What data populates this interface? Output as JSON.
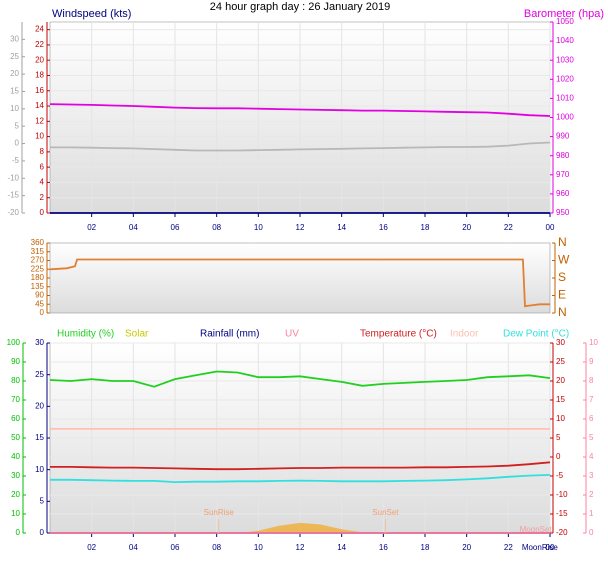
{
  "chart_data": [
    {
      "type": "line",
      "title": "24 hour graph day : 26 January 2019",
      "x": [
        0,
        1,
        2,
        3,
        4,
        5,
        6,
        7,
        8,
        9,
        10,
        11,
        12,
        13,
        14,
        15,
        16,
        17,
        18,
        19,
        20,
        21,
        22,
        23,
        24
      ],
      "xlim": [
        0,
        24
      ],
      "xticks": [
        {
          "value": 2,
          "label": "02"
        },
        {
          "value": 4,
          "label": "04"
        },
        {
          "value": 6,
          "label": "06"
        },
        {
          "value": 8,
          "label": "08"
        },
        10,
        12,
        14,
        16,
        18,
        20,
        22,
        {
          "value": 24,
          "label": "00"
        }
      ],
      "grid": true,
      "ylim": [
        0,
        25
      ],
      "yticks": [
        0,
        2,
        4,
        6,
        8,
        10,
        12,
        14,
        16,
        18,
        20,
        22,
        24
      ],
      "ycolor": "#c00000",
      "y2lim": [
        950,
        1050
      ],
      "y2ticks": [
        950,
        960,
        970,
        980,
        990,
        1000,
        1010,
        1020,
        1030,
        1040,
        1050
      ],
      "y2color": "#e000e0",
      "y3lim": [
        -20,
        35
      ],
      "y3ticks": [
        -20,
        -15,
        -10,
        -5,
        0,
        5,
        10,
        15,
        20,
        25,
        30
      ],
      "y3color": "#a0a0a0",
      "series": [
        {
          "name": "Windspeed (kts)",
          "color": "#000080",
          "values": [
            0,
            0,
            0,
            0,
            0,
            0,
            0,
            0,
            0,
            0,
            0,
            0,
            0,
            0,
            0,
            0,
            0,
            0,
            0,
            0,
            0,
            0,
            0,
            0,
            0
          ]
        },
        {
          "name": "Barometer (hpa)",
          "color": "#e000e0",
          "axis": "y2",
          "values": [
            1007,
            1006.8,
            1006.6,
            1006.3,
            1006,
            1005.6,
            1005.2,
            1004.9,
            1004.8,
            1004.8,
            1004.6,
            1004.4,
            1004.2,
            1004,
            1003.8,
            1003.6,
            1003.6,
            1003.4,
            1003.2,
            1003,
            1002.8,
            1002.6,
            1002,
            1001.2,
            1000.8
          ]
        },
        {
          "color": "#b8b8b8",
          "axis": "y3",
          "values": [
            -1.1,
            -1.1,
            -1.2,
            -1.3,
            -1.4,
            -1.6,
            -1.8,
            -2,
            -2,
            -2,
            -1.9,
            -1.8,
            -1.7,
            -1.6,
            -1.5,
            -1.4,
            -1.3,
            -1.2,
            -1.1,
            -1,
            -1,
            -0.9,
            -0.6,
            0,
            0.3
          ]
        }
      ]
    },
    {
      "type": "line",
      "xlim": [
        0,
        24
      ],
      "ylim": [
        0,
        360
      ],
      "yticks": [
        0,
        45,
        90,
        135,
        180,
        225,
        270,
        315,
        360
      ],
      "ycolor": "#c06000",
      "y2lim": [
        0,
        360
      ],
      "y2ticks": [
        {
          "value": 0,
          "label": "N"
        },
        {
          "value": 90,
          "label": "E"
        },
        {
          "value": 180,
          "label": "S"
        },
        {
          "value": 270,
          "label": "W"
        },
        {
          "value": 360,
          "label": "N"
        }
      ],
      "y2color": "#c06000",
      "series": [
        {
          "color": "#e08030",
          "x": [
            0,
            0.8,
            1.2,
            1.3,
            22.7,
            22.8,
            23,
            23.5,
            24
          ],
          "values": [
            225,
            230,
            240,
            275,
            275,
            35,
            38,
            45,
            45
          ]
        }
      ]
    },
    {
      "type": "line",
      "x": [
        0,
        1,
        2,
        3,
        4,
        5,
        6,
        7,
        8,
        9,
        10,
        11,
        12,
        13,
        14,
        15,
        16,
        17,
        18,
        19,
        20,
        21,
        22,
        23,
        24
      ],
      "xlim": [
        0,
        24
      ],
      "xticks": [
        {
          "value": 2,
          "label": "02"
        },
        {
          "value": 4,
          "label": "04"
        },
        {
          "value": 6,
          "label": "06"
        },
        {
          "value": 8,
          "label": "08"
        },
        10,
        12,
        14,
        16,
        18,
        20,
        22,
        {
          "value": 24,
          "label": "00"
        }
      ],
      "grid": true,
      "ylim": [
        0,
        100
      ],
      "yticks": [
        0,
        10,
        20,
        30,
        40,
        50,
        60,
        70,
        80,
        90,
        100
      ],
      "ycolor": "#00c000",
      "y3lim": [
        0,
        30
      ],
      "y3ticks": [
        0,
        5,
        10,
        15,
        20,
        25,
        30
      ],
      "y3color": "#000080",
      "y2lim": [
        -20,
        30
      ],
      "y2ticks": [
        -20,
        -15,
        -10,
        -5,
        0,
        5,
        10,
        15,
        20,
        25,
        30
      ],
      "y2color": "#c00000",
      "y4lim": [
        0,
        10
      ],
      "y4ticks": [
        0,
        1,
        2,
        3,
        4,
        5,
        6,
        7,
        8,
        9,
        10
      ],
      "y4color": "#ff80a0",
      "series": [
        {
          "name": "Humidity (%)",
          "color": "#20d020",
          "values": [
            80.5,
            80,
            81,
            80,
            80,
            77,
            81,
            83,
            85,
            84.5,
            82,
            82,
            82.5,
            81,
            79.5,
            77.5,
            78.5,
            79,
            79.5,
            80,
            80.5,
            82,
            82.5,
            83,
            81.5
          ]
        },
        {
          "name": "Solar",
          "color": "#c8c800",
          "fill": "#f0b040",
          "values": [
            0,
            0,
            0,
            0,
            0,
            0,
            0,
            0,
            0,
            0,
            1.2,
            3.8,
            5.3,
            4.5,
            2,
            0.3,
            0,
            0,
            0,
            0,
            0,
            0,
            0,
            0,
            0
          ]
        },
        {
          "name": "Rainfall (mm)",
          "color": "#000080",
          "axis": "y3",
          "values": [
            0,
            0,
            0,
            0,
            0,
            0,
            0,
            0,
            0,
            0,
            0,
            0,
            0,
            0,
            0,
            0,
            0,
            0,
            0,
            0,
            0,
            0,
            0,
            0,
            0
          ]
        },
        {
          "name": "UV",
          "color": "#ff80a0",
          "axis": "y4",
          "values": [
            0,
            0,
            0,
            0,
            0,
            0,
            0,
            0,
            0,
            0,
            0,
            0,
            0,
            0,
            0,
            0,
            0,
            0,
            0,
            0,
            0,
            0,
            0,
            0,
            0
          ]
        },
        {
          "name": "Temperature (°C)",
          "color": "#d02020",
          "axis": "y2",
          "values": [
            -2.6,
            -2.6,
            -2.7,
            -2.8,
            -2.8,
            -2.9,
            -3,
            -3.1,
            -3.2,
            -3.2,
            -3.1,
            -3,
            -2.9,
            -2.9,
            -2.8,
            -2.8,
            -2.8,
            -2.8,
            -2.7,
            -2.7,
            -2.6,
            -2.5,
            -2.3,
            -1.9,
            -1.4
          ]
        },
        {
          "name": "Indoor",
          "color": "#ffc0b0",
          "axis": "y2",
          "values": [
            7.4,
            7.4,
            7.4,
            7.4,
            7.4,
            7.4,
            7.4,
            7.4,
            7.4,
            7.4,
            7.4,
            7.4,
            7.4,
            7.4,
            7.4,
            7.4,
            7.4,
            7.4,
            7.4,
            7.4,
            7.4,
            7.4,
            7.4,
            7.4,
            7.4
          ]
        },
        {
          "name": "Dew Point (°C)",
          "color": "#30e0e0",
          "axis": "y2",
          "values": [
            -6,
            -6,
            -6.1,
            -6.2,
            -6.3,
            -6.3,
            -6.6,
            -6.5,
            -6.5,
            -6.4,
            -6.4,
            -6.3,
            -6.2,
            -6.3,
            -6.4,
            -6.4,
            -6.4,
            -6.3,
            -6.2,
            -6.1,
            -5.9,
            -5.6,
            -5.2,
            -4.9,
            -4.7
          ]
        }
      ],
      "annotations": [
        {
          "text": "SunRise",
          "x": 8.1
        },
        {
          "text": "SunSet",
          "x": 16.1
        },
        {
          "text": "MoonSet",
          "x": 23.6
        },
        {
          "text": "MoonRise",
          "x": 23.8
        }
      ]
    }
  ]
}
